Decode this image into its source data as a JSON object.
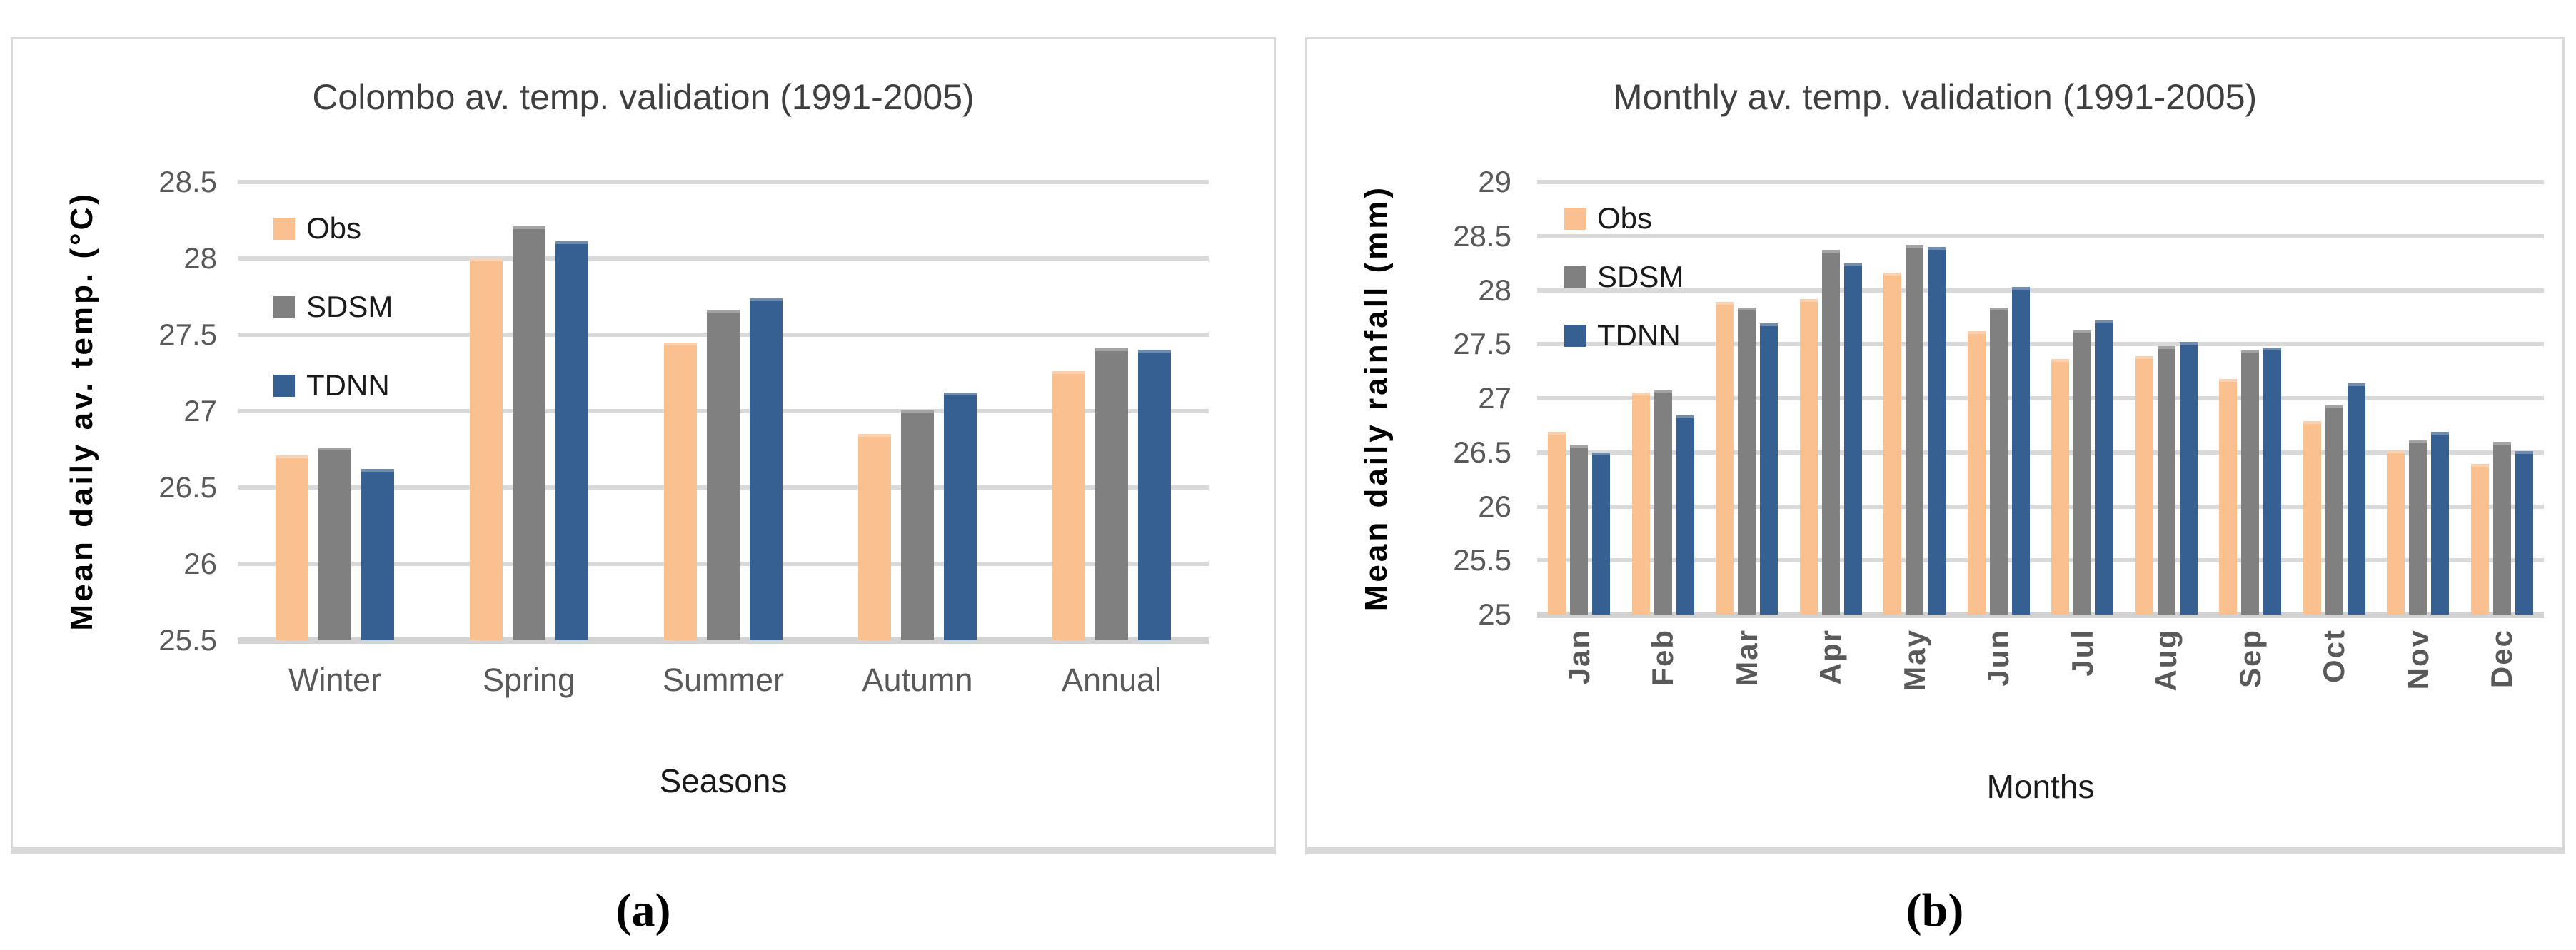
{
  "figure": {
    "captions": [
      "(a)",
      "(b)"
    ]
  },
  "colors": {
    "obs": "#FAC090",
    "sdsm": "#808080",
    "tdnn": "#366092",
    "gridline": "#D9D9D9",
    "tick_text": "#595959",
    "title_text": "#3F3F3F"
  },
  "chart_data": [
    {
      "type": "bar",
      "title": "Colombo av. temp. validation (1991-2005)",
      "xlabel": "Seasons",
      "ylabel": "Mean daily av. temp. (°C)",
      "ylim": [
        25.5,
        28.5
      ],
      "yticks": [
        28.5,
        28,
        27.5,
        27,
        26.5,
        26,
        25.5
      ],
      "grid": true,
      "legend_position": "top-left-inside",
      "caption": "(a)",
      "categories": [
        "Winter",
        "Spring",
        "Summer",
        "Autumn",
        "Annual"
      ],
      "series": [
        {
          "name": "Obs",
          "color": "#FAC090",
          "values": [
            26.71,
            28.0,
            27.45,
            26.85,
            27.26
          ]
        },
        {
          "name": "SDSM",
          "color": "#808080",
          "values": [
            26.76,
            28.21,
            27.66,
            27.01,
            27.41
          ]
        },
        {
          "name": "TDNN",
          "color": "#366092",
          "values": [
            26.62,
            28.11,
            27.74,
            27.12,
            27.4
          ]
        }
      ]
    },
    {
      "type": "bar",
      "title": "Monthly av. temp. validation (1991-2005)",
      "xlabel": "Months",
      "ylabel": "Mean daily rainfall (mm)",
      "ylim": [
        25,
        29
      ],
      "yticks": [
        29,
        28.5,
        28,
        27.5,
        27,
        26.5,
        26,
        25.5,
        25
      ],
      "grid": true,
      "legend_position": "top-left-inside",
      "caption": "(b)",
      "categories": [
        "Jan",
        "Feb",
        "Mar",
        "Apr",
        "May",
        "Jun",
        "Jul",
        "Aug",
        "Sep",
        "Oct",
        "Nov",
        "Dec"
      ],
      "series": [
        {
          "name": "Obs",
          "color": "#FAC090",
          "values": [
            26.69,
            27.05,
            27.89,
            27.92,
            28.16,
            27.62,
            27.36,
            27.39,
            27.18,
            26.79,
            26.52,
            26.39
          ]
        },
        {
          "name": "SDSM",
          "color": "#808080",
          "values": [
            26.57,
            27.07,
            27.84,
            28.37,
            28.42,
            27.84,
            27.63,
            27.48,
            27.44,
            26.94,
            26.61,
            26.6
          ]
        },
        {
          "name": "TDNN",
          "color": "#366092",
          "values": [
            26.5,
            26.84,
            27.69,
            28.25,
            28.4,
            28.03,
            27.72,
            27.52,
            27.47,
            27.14,
            26.69,
            26.51
          ]
        }
      ]
    }
  ]
}
